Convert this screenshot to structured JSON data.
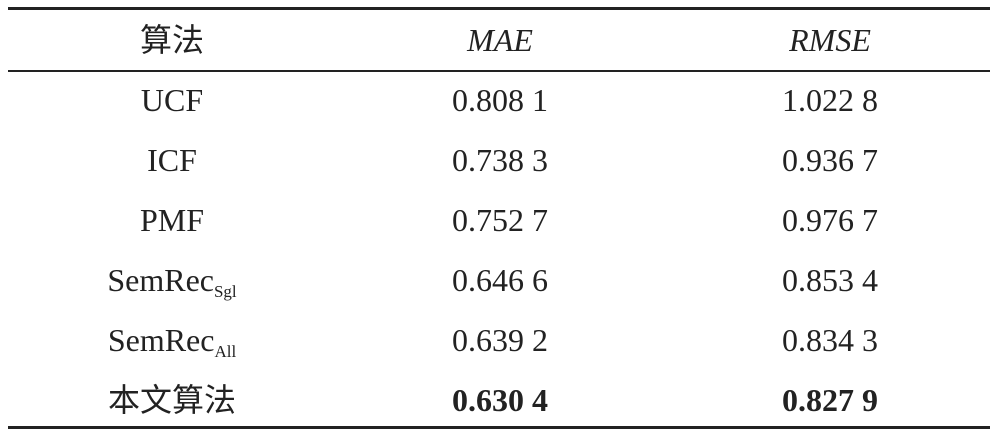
{
  "table": {
    "header": [
      "算法",
      "MAE",
      "RMSE"
    ],
    "rows": [
      [
        {
          "text": "UCF"
        },
        "0.808 1",
        "1.022 8"
      ],
      [
        {
          "text": "ICF"
        },
        "0.738 3",
        "0.936 7"
      ],
      [
        {
          "text": "PMF"
        },
        "0.752 7",
        "0.976 7"
      ],
      [
        {
          "text": "SemRec",
          "sub": "Sgl"
        },
        "0.646 6",
        "0.853 4"
      ],
      [
        {
          "text": "SemRec",
          "sub": "All"
        },
        "0.639 2",
        "0.834 3"
      ],
      [
        {
          "text": "本文算法"
        },
        "0.630 4",
        "0.827 9"
      ]
    ]
  }
}
